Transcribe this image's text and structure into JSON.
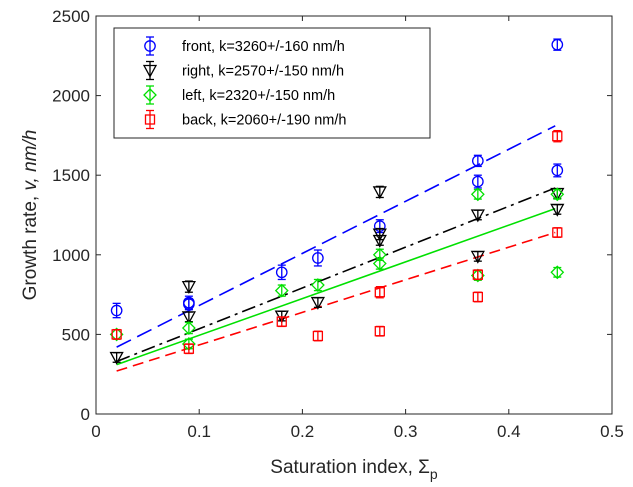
{
  "chart_data": {
    "type": "scatter",
    "xlabel": "Saturation index, Σp",
    "xlabel_main": "Saturation index, ",
    "xlabel_symbol": "Σ",
    "xlabel_sub": "p",
    "ylabel": "Growth rate, v, nm/h",
    "ylabel_parts": [
      "Growth rate, ",
      "v, nm/h"
    ],
    "xlim": [
      0,
      0.5
    ],
    "ylim": [
      0,
      2500
    ],
    "xticks": [
      0,
      0.1,
      0.2,
      0.3,
      0.4,
      0.5
    ],
    "xtick_labels": [
      "0",
      "0.1",
      "0.2",
      "0.3",
      "0.4",
      "0.5"
    ],
    "yticks": [
      0,
      500,
      1000,
      1500,
      2000,
      2500
    ],
    "ytick_labels": [
      "0",
      "500",
      "1000",
      "1500",
      "2000",
      "2500"
    ],
    "grid": false,
    "legend_position": "top-left",
    "series": [
      {
        "name": "front, k=3260+/-160 nm/h",
        "color": "#0000ff",
        "marker": "circle",
        "line_style": "long-dash",
        "fit": {
          "x": [
            0.02,
            0.445
          ],
          "y": [
            420,
            1810
          ]
        },
        "points": [
          {
            "x": 0.02,
            "y": 650,
            "err": 45
          },
          {
            "x": 0.09,
            "y": 700,
            "err": 40
          },
          {
            "x": 0.09,
            "y": 690,
            "err": 35
          },
          {
            "x": 0.18,
            "y": 890,
            "err": 45
          },
          {
            "x": 0.215,
            "y": 980,
            "err": 50
          },
          {
            "x": 0.275,
            "y": 1180,
            "err": 40
          },
          {
            "x": 0.37,
            "y": 1590,
            "err": 35
          },
          {
            "x": 0.37,
            "y": 1460,
            "err": 40
          },
          {
            "x": 0.447,
            "y": 2320,
            "err": 35
          },
          {
            "x": 0.447,
            "y": 1530,
            "err": 40
          }
        ]
      },
      {
        "name": "right, k=2570+/-150 nm/h",
        "color": "#000000",
        "marker": "triangle-down",
        "line_style": "dash-dot",
        "fit": {
          "x": [
            0.02,
            0.445
          ],
          "y": [
            330,
            1420
          ]
        },
        "points": [
          {
            "x": 0.02,
            "y": 355,
            "err": 30
          },
          {
            "x": 0.09,
            "y": 800,
            "err": 35
          },
          {
            "x": 0.09,
            "y": 610,
            "err": 30
          },
          {
            "x": 0.18,
            "y": 615,
            "err": 30
          },
          {
            "x": 0.215,
            "y": 700,
            "err": 30
          },
          {
            "x": 0.275,
            "y": 1395,
            "err": 35
          },
          {
            "x": 0.275,
            "y": 1130,
            "err": 35
          },
          {
            "x": 0.275,
            "y": 1090,
            "err": 30
          },
          {
            "x": 0.37,
            "y": 1250,
            "err": 30
          },
          {
            "x": 0.37,
            "y": 990,
            "err": 30
          },
          {
            "x": 0.447,
            "y": 1385,
            "err": 30
          },
          {
            "x": 0.447,
            "y": 1285,
            "err": 30
          }
        ]
      },
      {
        "name": "left,  k=2320+/-150 nm/h",
        "color": "#00e000",
        "marker": "diamond",
        "line_style": "solid",
        "fit": {
          "x": [
            0.02,
            0.445
          ],
          "y": [
            310,
            1290
          ]
        },
        "points": [
          {
            "x": 0.02,
            "y": 500,
            "err": 30
          },
          {
            "x": 0.09,
            "y": 540,
            "err": 35
          },
          {
            "x": 0.09,
            "y": 440,
            "err": 30
          },
          {
            "x": 0.18,
            "y": 775,
            "err": 35
          },
          {
            "x": 0.215,
            "y": 810,
            "err": 35
          },
          {
            "x": 0.275,
            "y": 1000,
            "err": 35
          },
          {
            "x": 0.275,
            "y": 945,
            "err": 35
          },
          {
            "x": 0.37,
            "y": 1380,
            "err": 30
          },
          {
            "x": 0.37,
            "y": 870,
            "err": 30
          },
          {
            "x": 0.447,
            "y": 1380,
            "err": 30
          },
          {
            "x": 0.447,
            "y": 890,
            "err": 30
          }
        ]
      },
      {
        "name": "back,  k=2060+/-190 nm/h",
        "color": "#ff0000",
        "marker": "square",
        "line_style": "dashed",
        "fit": {
          "x": [
            0.02,
            0.445
          ],
          "y": [
            270,
            1140
          ]
        },
        "points": [
          {
            "x": 0.02,
            "y": 500,
            "err": 30
          },
          {
            "x": 0.09,
            "y": 410,
            "err": 30
          },
          {
            "x": 0.18,
            "y": 580,
            "err": 30
          },
          {
            "x": 0.215,
            "y": 490,
            "err": 30
          },
          {
            "x": 0.275,
            "y": 765,
            "err": 35
          },
          {
            "x": 0.275,
            "y": 520,
            "err": 30
          },
          {
            "x": 0.37,
            "y": 875,
            "err": 30
          },
          {
            "x": 0.37,
            "y": 735,
            "err": 30
          },
          {
            "x": 0.447,
            "y": 1745,
            "err": 35
          },
          {
            "x": 0.447,
            "y": 1140,
            "err": 30
          }
        ]
      }
    ]
  }
}
